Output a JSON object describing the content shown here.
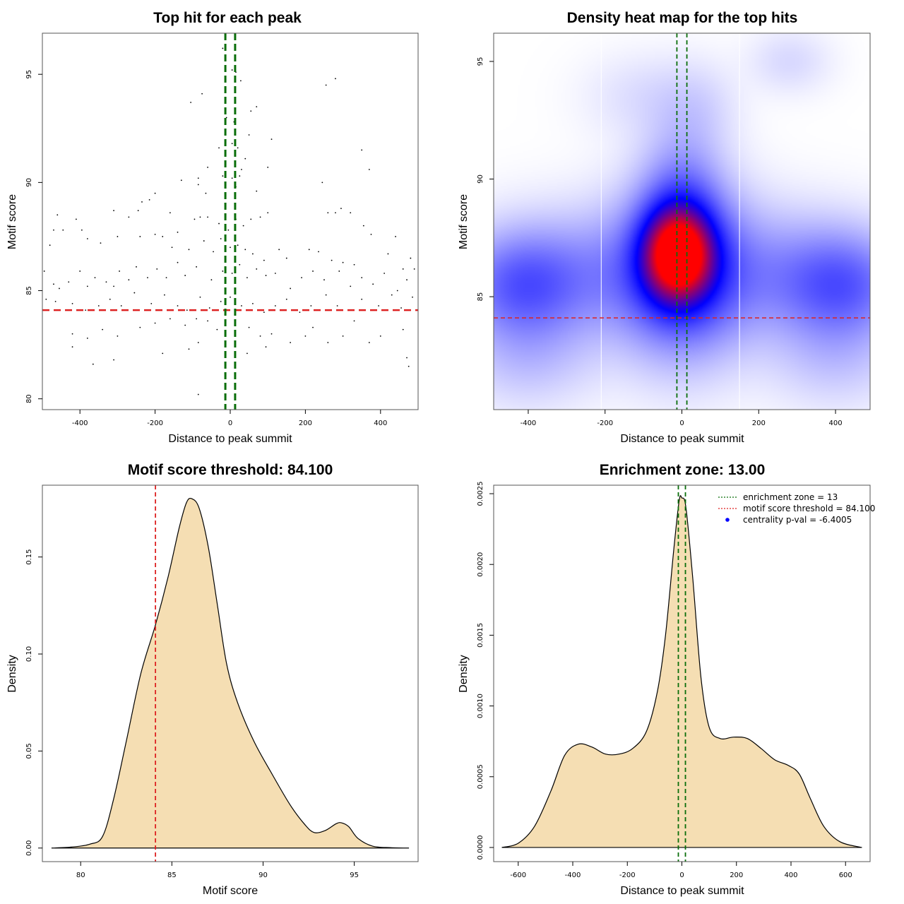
{
  "chart_data": [
    {
      "id": "scatter",
      "type": "scatter",
      "title": "Top hit for each peak",
      "xlabel": "Distance to peak summit",
      "ylabel": "Motif score",
      "xlim": [
        -500,
        500
      ],
      "ylim": [
        79.5,
        96.9
      ],
      "xticks": [
        -400,
        -200,
        0,
        200,
        400
      ],
      "yticks": [
        80,
        85,
        90,
        95
      ],
      "threshold_line": {
        "y": 84.1,
        "color": "#dd2222"
      },
      "zone_lines": {
        "x": [
          -13,
          13
        ],
        "color": "#0a6e0a"
      },
      "point_color": "#000000",
      "points": [
        [
          -20,
          96.2
        ],
        [
          -75,
          94.1
        ],
        [
          -105,
          93.7
        ],
        [
          5,
          95.2
        ],
        [
          15,
          95.1
        ],
        [
          28,
          94.7
        ],
        [
          255,
          94.5
        ],
        [
          280,
          94.8
        ],
        [
          70,
          93.5
        ],
        [
          55,
          93.3
        ],
        [
          -10,
          93.0
        ],
        [
          10,
          92.8
        ],
        [
          5,
          91.8
        ],
        [
          50,
          92.2
        ],
        [
          110,
          92.0
        ],
        [
          350,
          91.5
        ],
        [
          -30,
          91.6
        ],
        [
          20,
          91.6
        ],
        [
          40,
          91.1
        ],
        [
          -60,
          90.7
        ],
        [
          30,
          90.6
        ],
        [
          -85,
          90.2
        ],
        [
          -20,
          90.3
        ],
        [
          5,
          90.2
        ],
        [
          25,
          90.3
        ],
        [
          -130,
          90.1
        ],
        [
          -200,
          89.5
        ],
        [
          -215,
          89.2
        ],
        [
          -85,
          89.9
        ],
        [
          -65,
          89.5
        ],
        [
          15,
          89.8
        ],
        [
          70,
          89.6
        ],
        [
          245,
          90.0
        ],
        [
          370,
          90.6
        ],
        [
          100,
          90.7
        ],
        [
          -310,
          88.7
        ],
        [
          -270,
          88.4
        ],
        [
          -245,
          88.7
        ],
        [
          -235,
          89.1
        ],
        [
          -160,
          88.6
        ],
        [
          -140,
          87.7
        ],
        [
          -95,
          88.3
        ],
        [
          -80,
          88.4
        ],
        [
          -60,
          88.4
        ],
        [
          -30,
          88.1
        ],
        [
          -5,
          87.8
        ],
        [
          15,
          88.3
        ],
        [
          35,
          88.0
        ],
        [
          55,
          88.3
        ],
        [
          80,
          88.4
        ],
        [
          100,
          88.6
        ],
        [
          260,
          88.6
        ],
        [
          280,
          88.6
        ],
        [
          295,
          88.8
        ],
        [
          320,
          88.6
        ],
        [
          355,
          88.0
        ],
        [
          -480,
          87.1
        ],
        [
          -470,
          87.8
        ],
        [
          -460,
          88.5
        ],
        [
          -445,
          87.8
        ],
        [
          -410,
          88.3
        ],
        [
          -395,
          87.8
        ],
        [
          -380,
          87.4
        ],
        [
          -345,
          87.2
        ],
        [
          -300,
          87.5
        ],
        [
          -240,
          87.5
        ],
        [
          -200,
          87.6
        ],
        [
          -180,
          87.5
        ],
        [
          -155,
          87.0
        ],
        [
          -110,
          86.9
        ],
        [
          -70,
          87.3
        ],
        [
          -45,
          86.8
        ],
        [
          -25,
          87.4
        ],
        [
          0,
          87.0
        ],
        [
          20,
          87.1
        ],
        [
          40,
          86.9
        ],
        [
          60,
          86.7
        ],
        [
          90,
          86.4
        ],
        [
          130,
          86.9
        ],
        [
          150,
          86.5
        ],
        [
          210,
          86.9
        ],
        [
          235,
          86.8
        ],
        [
          270,
          86.4
        ],
        [
          300,
          86.3
        ],
        [
          330,
          86.2
        ],
        [
          375,
          87.6
        ],
        [
          420,
          86.7
        ],
        [
          440,
          87.5
        ],
        [
          460,
          86.0
        ],
        [
          480,
          86.5
        ],
        [
          -495,
          85.9
        ],
        [
          -470,
          85.3
        ],
        [
          -455,
          85.1
        ],
        [
          -430,
          85.4
        ],
        [
          -400,
          85.9
        ],
        [
          -380,
          85.2
        ],
        [
          -360,
          85.6
        ],
        [
          -330,
          85.4
        ],
        [
          -310,
          85.2
        ],
        [
          -295,
          85.9
        ],
        [
          -270,
          85.5
        ],
        [
          -250,
          86.1
        ],
        [
          -220,
          85.6
        ],
        [
          -195,
          86.0
        ],
        [
          -170,
          85.6
        ],
        [
          -140,
          86.3
        ],
        [
          -120,
          85.7
        ],
        [
          -90,
          86.1
        ],
        [
          -50,
          85.5
        ],
        [
          -20,
          85.9
        ],
        [
          5,
          85.8
        ],
        [
          25,
          86.2
        ],
        [
          45,
          85.6
        ],
        [
          70,
          86.0
        ],
        [
          95,
          85.7
        ],
        [
          120,
          85.8
        ],
        [
          160,
          85.1
        ],
        [
          190,
          85.6
        ],
        [
          220,
          85.9
        ],
        [
          250,
          85.5
        ],
        [
          290,
          85.9
        ],
        [
          320,
          85.2
        ],
        [
          350,
          85.6
        ],
        [
          380,
          85.3
        ],
        [
          410,
          85.8
        ],
        [
          445,
          85.0
        ],
        [
          470,
          85.5
        ],
        [
          490,
          86.0
        ],
        [
          -490,
          84.6
        ],
        [
          -465,
          84.5
        ],
        [
          -420,
          84.4
        ],
        [
          -385,
          84.1
        ],
        [
          -350,
          84.3
        ],
        [
          -320,
          84.6
        ],
        [
          -290,
          84.3
        ],
        [
          -255,
          84.9
        ],
        [
          -210,
          84.4
        ],
        [
          -175,
          84.8
        ],
        [
          -140,
          84.3
        ],
        [
          -115,
          84.1
        ],
        [
          -80,
          84.7
        ],
        [
          -55,
          84.2
        ],
        [
          -25,
          84.5
        ],
        [
          0,
          84.7
        ],
        [
          30,
          84.3
        ],
        [
          60,
          84.4
        ],
        [
          90,
          84.0
        ],
        [
          120,
          84.3
        ],
        [
          150,
          84.6
        ],
        [
          185,
          84.0
        ],
        [
          215,
          84.3
        ],
        [
          255,
          84.8
        ],
        [
          285,
          84.3
        ],
        [
          315,
          84.1
        ],
        [
          350,
          84.6
        ],
        [
          395,
          84.3
        ],
        [
          430,
          84.8
        ],
        [
          455,
          84.2
        ],
        [
          485,
          84.7
        ],
        [
          -420,
          83.0
        ],
        [
          -380,
          82.8
        ],
        [
          -340,
          83.2
        ],
        [
          -300,
          82.9
        ],
        [
          -240,
          83.3
        ],
        [
          -200,
          83.5
        ],
        [
          -160,
          83.7
        ],
        [
          -120,
          83.4
        ],
        [
          -90,
          83.7
        ],
        [
          -60,
          83.6
        ],
        [
          -35,
          83.2
        ],
        [
          50,
          83.3
        ],
        [
          80,
          82.9
        ],
        [
          110,
          83.0
        ],
        [
          160,
          82.6
        ],
        [
          200,
          82.9
        ],
        [
          220,
          83.3
        ],
        [
          260,
          82.6
        ],
        [
          300,
          82.9
        ],
        [
          330,
          83.6
        ],
        [
          370,
          82.6
        ],
        [
          400,
          82.9
        ],
        [
          460,
          83.2
        ],
        [
          -420,
          82.4
        ],
        [
          -365,
          81.6
        ],
        [
          -310,
          81.8
        ],
        [
          -180,
          82.1
        ],
        [
          -110,
          82.3
        ],
        [
          -85,
          82.6
        ],
        [
          45,
          82.1
        ],
        [
          95,
          82.4
        ],
        [
          470,
          81.9
        ],
        [
          475,
          81.5
        ],
        [
          -85,
          80.2
        ]
      ]
    },
    {
      "id": "heatmap",
      "type": "heatmap",
      "title": "Density heat map for the top hits",
      "xlabel": "Distance to peak summit",
      "ylabel": "Motif score",
      "xlim": [
        -490,
        490
      ],
      "ylim": [
        80.2,
        96.2
      ],
      "xticks": [
        -400,
        -200,
        0,
        200,
        400
      ],
      "yticks": [
        85,
        90,
        95
      ],
      "color_scale": [
        "#ffffff",
        "#0000ff",
        "#ff0000"
      ],
      "threshold_line": {
        "y": 84.1,
        "color": "#dd2222"
      },
      "zone_lines": {
        "x": [
          -13,
          13
        ],
        "color": "#0a6e0a"
      },
      "white_rules_x": [
        -210,
        150
      ],
      "blobs": [
        {
          "x": -10,
          "y": 86.8,
          "sx": 60,
          "sy": 1.3,
          "w": 2.2
        },
        {
          "x": 0,
          "y": 86.0,
          "sx": 110,
          "sy": 2.4,
          "w": 0.9
        },
        {
          "x": 0,
          "y": 89.0,
          "sx": 70,
          "sy": 2.0,
          "w": 0.45
        },
        {
          "x": -420,
          "y": 85.5,
          "sx": 110,
          "sy": 1.5,
          "w": 0.65
        },
        {
          "x": 420,
          "y": 85.5,
          "sx": 110,
          "sy": 1.5,
          "w": 0.65
        },
        {
          "x": -220,
          "y": 86.0,
          "sx": 170,
          "sy": 1.8,
          "w": 0.35
        },
        {
          "x": 220,
          "y": 86.0,
          "sx": 170,
          "sy": 1.8,
          "w": 0.35
        },
        {
          "x": -400,
          "y": 82.5,
          "sx": 120,
          "sy": 1.5,
          "w": 0.22
        },
        {
          "x": 400,
          "y": 82.5,
          "sx": 120,
          "sy": 1.5,
          "w": 0.2
        },
        {
          "x": 280,
          "y": 95.0,
          "sx": 70,
          "sy": 0.9,
          "w": 0.12
        },
        {
          "x": -100,
          "y": 93.5,
          "sx": 100,
          "sy": 1.2,
          "w": 0.1
        },
        {
          "x": 40,
          "y": 93.0,
          "sx": 70,
          "sy": 1.3,
          "w": 0.12
        }
      ]
    },
    {
      "id": "score_density",
      "type": "area",
      "title": "Motif score threshold: 84.100",
      "xlabel": "Motif score",
      "ylabel": "Density",
      "xlim": [
        77.9,
        98.5
      ],
      "ylim": [
        -0.007,
        0.187
      ],
      "xticks": [
        80,
        85,
        90,
        95
      ],
      "yticks": [
        0.0,
        0.05,
        0.1,
        0.15
      ],
      "ytick_labels": [
        "0.00",
        "0.05",
        "0.10",
        "0.15"
      ],
      "fill": "#f5deb3",
      "threshold_line": {
        "x": 84.1,
        "color": "#dd2222"
      },
      "curve": [
        [
          78.4,
          0.0
        ],
        [
          79.5,
          0.0005
        ],
        [
          80.5,
          0.002
        ],
        [
          81.2,
          0.006
        ],
        [
          81.8,
          0.025
        ],
        [
          82.5,
          0.055
        ],
        [
          83.3,
          0.09
        ],
        [
          84.1,
          0.115
        ],
        [
          84.8,
          0.14
        ],
        [
          85.4,
          0.165
        ],
        [
          85.8,
          0.178
        ],
        [
          86.1,
          0.18
        ],
        [
          86.5,
          0.175
        ],
        [
          87.0,
          0.155
        ],
        [
          87.5,
          0.125
        ],
        [
          88.0,
          0.095
        ],
        [
          88.6,
          0.075
        ],
        [
          89.5,
          0.055
        ],
        [
          90.5,
          0.038
        ],
        [
          91.5,
          0.022
        ],
        [
          92.3,
          0.012
        ],
        [
          92.8,
          0.008
        ],
        [
          93.4,
          0.009
        ],
        [
          94.0,
          0.0125
        ],
        [
          94.3,
          0.013
        ],
        [
          94.7,
          0.011
        ],
        [
          95.2,
          0.005
        ],
        [
          96.0,
          0.001
        ],
        [
          97.0,
          0.0002
        ],
        [
          98.0,
          0.0
        ]
      ]
    },
    {
      "id": "distance_density",
      "type": "area",
      "title": "Enrichment zone: 13.00",
      "xlabel": "Distance to peak summit",
      "ylabel": "Density",
      "xlim": [
        -690,
        690
      ],
      "ylim": [
        -0.0001,
        0.00256
      ],
      "xticks": [
        -600,
        -400,
        -200,
        0,
        200,
        400,
        600
      ],
      "yticks": [
        0.0,
        0.0005,
        0.001,
        0.0015,
        0.002,
        0.0025
      ],
      "ytick_labels": [
        "0.0000",
        "0.0005",
        "0.0010",
        "0.0015",
        "0.0020",
        "0.0025"
      ],
      "fill": "#f5deb3",
      "zone_lines": {
        "x": [
          -13,
          13
        ],
        "color": "#0a6e0a"
      },
      "curve": [
        [
          -660,
          0.0
        ],
        [
          -600,
          3e-05
        ],
        [
          -540,
          0.00015
        ],
        [
          -480,
          0.0004
        ],
        [
          -430,
          0.00065
        ],
        [
          -380,
          0.00073
        ],
        [
          -330,
          0.00071
        ],
        [
          -280,
          0.00066
        ],
        [
          -230,
          0.00066
        ],
        [
          -180,
          0.0007
        ],
        [
          -130,
          0.00082
        ],
        [
          -90,
          0.0011
        ],
        [
          -60,
          0.0015
        ],
        [
          -30,
          0.0021
        ],
        [
          -10,
          0.00245
        ],
        [
          0,
          0.00247
        ],
        [
          15,
          0.0024
        ],
        [
          40,
          0.0019
        ],
        [
          70,
          0.0012
        ],
        [
          100,
          0.00085
        ],
        [
          140,
          0.00077
        ],
        [
          190,
          0.00078
        ],
        [
          240,
          0.00077
        ],
        [
          290,
          0.0007
        ],
        [
          340,
          0.00062
        ],
        [
          390,
          0.00058
        ],
        [
          430,
          0.00052
        ],
        [
          470,
          0.00035
        ],
        [
          520,
          0.00015
        ],
        [
          580,
          4e-05
        ],
        [
          660,
          0.0
        ]
      ],
      "legend": [
        {
          "label": "enrichment zone = 13",
          "color": "#0a6e0a",
          "kind": "dotted-line"
        },
        {
          "label": "motif score threshold = 84.100",
          "color": "#dd2222",
          "kind": "dotted-line"
        },
        {
          "label": "centrality p-val = -6.4005",
          "color": "#0000ff",
          "kind": "point"
        }
      ]
    }
  ]
}
